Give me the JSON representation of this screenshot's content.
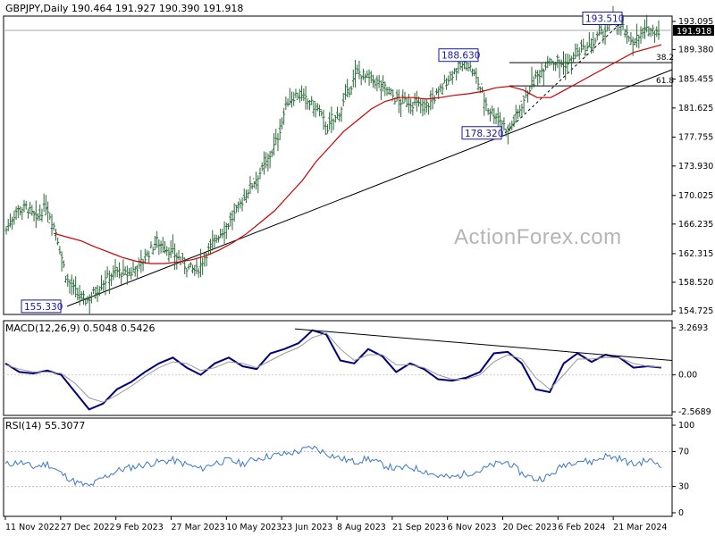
{
  "header": {
    "price_title": "GBPJPY,Daily  190.464 191.927 190.390 191.918",
    "macd_title": "MACD(12,26,9) 0.5048 0.5426",
    "rsi_title": "RSI(14) 55.3077"
  },
  "watermark": "ActionForex.com",
  "colors": {
    "price_bars": "#2a6a3a",
    "ma_line": "#cc0000",
    "macd_line": "#00007a",
    "signal_line": "#999999",
    "rsi_line": "#3b78c7",
    "label_border": "#1a1aa0"
  },
  "chart_data": [
    {
      "type": "line",
      "panel": "price",
      "y_ticks": [
        "193.095",
        "189.380",
        "185.455",
        "181.625",
        "177.755",
        "173.930",
        "170.025",
        "166.235",
        "162.315",
        "158.520",
        "154.725"
      ],
      "ylim": [
        154.725,
        193.095
      ],
      "x_ticks": [
        "11 Nov 2022",
        "27 Dec 2022",
        "9 Feb 2023",
        "27 Mar 2023",
        "10 May 2023",
        "23 Jun 2023",
        "8 Aug 2023",
        "21 Sep 2023",
        "6 Nov 2023",
        "20 Dec 2023",
        "6 Feb 2024",
        "21 Mar 2024"
      ],
      "current_price": "191.918",
      "annotations": [
        {
          "text": "193.510",
          "price": 193.51
        },
        {
          "text": "188.630",
          "price": 188.63
        },
        {
          "text": "178.320",
          "price": 178.32
        },
        {
          "text": "155.330",
          "price": 155.33
        }
      ],
      "fib_levels": [
        {
          "text": "38.2",
          "price": 187.64
        },
        {
          "text": "61.8",
          "price": 184.55
        }
      ],
      "close_series": [
        165.5,
        168.0,
        168.5,
        166.8,
        168.8,
        165.0,
        159.0,
        157.0,
        156.0,
        157.5,
        159.0,
        160.0,
        159.5,
        160.5,
        162.0,
        164.0,
        163.0,
        162.0,
        160.5,
        160.0,
        162.5,
        164.5,
        166.0,
        168.0,
        170.5,
        172.5,
        174.5,
        177.5,
        182.5,
        183.5,
        182.5,
        181.5,
        179.0,
        180.5,
        183.5,
        186.5,
        185.5,
        185.0,
        184.0,
        182.5,
        182.5,
        182.0,
        182.0,
        183.5,
        185.5,
        187.0,
        187.5,
        185.0,
        181.5,
        180.5,
        178.5,
        181.0,
        184.0,
        186.0,
        188.0,
        187.5,
        187.5,
        189.0,
        189.5,
        191.0,
        192.5,
        193.5,
        190.5,
        191.0,
        192.0,
        191.918
      ],
      "ma_series": [
        165.0,
        164.5,
        164.0,
        163.2,
        162.5,
        161.8,
        161.3,
        161.0,
        161.0,
        161.2,
        161.5,
        162.0,
        162.8,
        163.8,
        165.0,
        166.5,
        168.0,
        170.0,
        172.0,
        174.5,
        176.5,
        178.5,
        180.0,
        181.5,
        182.5,
        183.0,
        183.0,
        182.8,
        183.0,
        183.3,
        183.5,
        183.8,
        184.3,
        184.5,
        184.0,
        183.0,
        183.0,
        184.0,
        185.0,
        186.0,
        187.0,
        188.0,
        189.0,
        189.5,
        190.0
      ]
    },
    {
      "type": "line",
      "panel": "macd",
      "y_ticks": [
        "3.2693",
        "0.00",
        "-2.5689"
      ],
      "ylim": [
        -2.5689,
        3.2693
      ],
      "series": [
        {
          "name": "MACD(12,26,9)",
          "values": [
            0.8,
            0.2,
            0.1,
            0.3,
            0.0,
            -1.2,
            -2.4,
            -2.0,
            -1.0,
            -0.5,
            0.2,
            0.8,
            1.2,
            0.5,
            0.0,
            0.8,
            1.2,
            0.6,
            0.4,
            1.5,
            1.8,
            2.2,
            3.1,
            2.8,
            1.0,
            0.8,
            1.8,
            1.3,
            0.2,
            0.8,
            0.4,
            -0.3,
            -0.4,
            -0.2,
            0.2,
            1.5,
            1.6,
            0.8,
            -1.0,
            -1.2,
            0.8,
            1.5,
            0.9,
            1.4,
            1.2,
            0.5,
            0.6,
            0.5048
          ]
        },
        {
          "name": "Signal",
          "values": [
            0.7,
            0.4,
            0.2,
            0.2,
            0.1,
            -0.6,
            -1.6,
            -1.9,
            -1.4,
            -0.8,
            -0.1,
            0.5,
            0.9,
            0.8,
            0.3,
            0.5,
            0.9,
            0.8,
            0.5,
            1.0,
            1.5,
            1.9,
            2.6,
            2.9,
            1.8,
            1.0,
            1.4,
            1.4,
            0.7,
            0.7,
            0.5,
            0.0,
            -0.3,
            -0.3,
            0.0,
            0.9,
            1.4,
            1.1,
            -0.2,
            -1.0,
            0.0,
            1.1,
            1.1,
            1.2,
            1.2,
            0.8,
            0.6,
            0.5426
          ]
        }
      ]
    },
    {
      "type": "line",
      "panel": "rsi",
      "y_ticks": [
        "100",
        "70",
        "30",
        "0"
      ],
      "ylim": [
        0,
        100
      ],
      "series": [
        {
          "name": "RSI(14)",
          "values": [
            55,
            58,
            52,
            56,
            45,
            35,
            30,
            40,
            48,
            52,
            55,
            58,
            60,
            55,
            50,
            57,
            60,
            56,
            62,
            65,
            67,
            70,
            75,
            68,
            62,
            58,
            62,
            55,
            50,
            52,
            48,
            42,
            40,
            45,
            48,
            55,
            58,
            45,
            38,
            42,
            55,
            60,
            58,
            65,
            62,
            55,
            60,
            55.3077
          ]
        }
      ]
    }
  ]
}
